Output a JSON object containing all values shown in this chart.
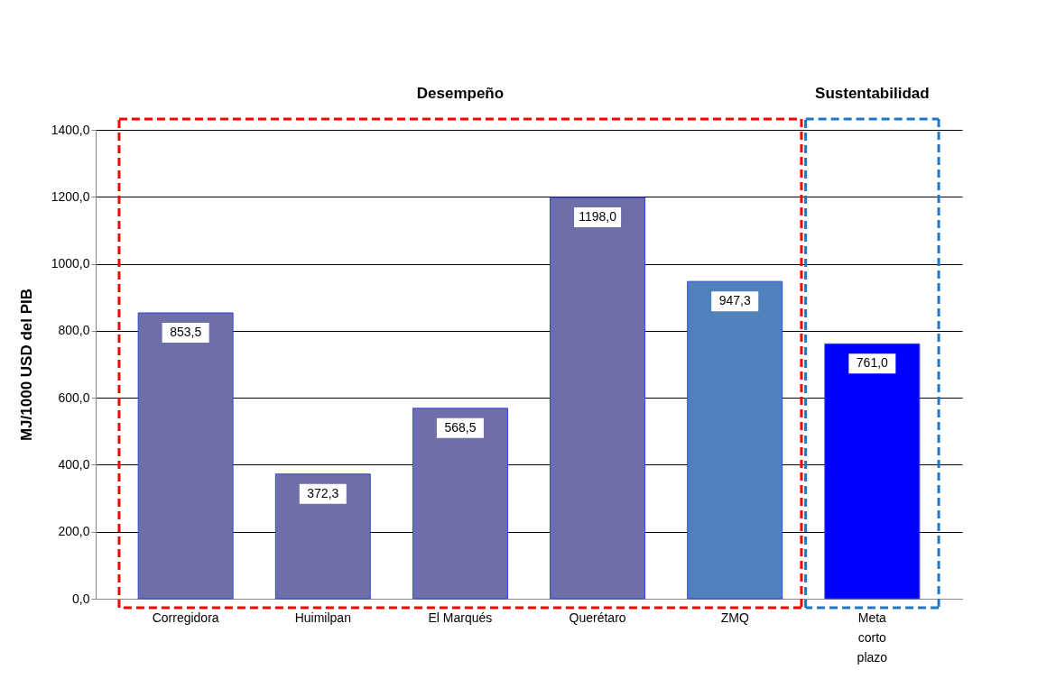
{
  "chart_data": {
    "type": "bar",
    "ylabel": "MJ/1000 USD del PIB",
    "categories": [
      "Corregidora",
      "Huimilpan",
      "El Marqués",
      "Querétaro",
      "ZMQ",
      "Meta corto plazo"
    ],
    "values": [
      853.5,
      372.3,
      568.5,
      1198.0,
      947.3,
      761.0
    ],
    "value_labels": [
      "853,5",
      "372,3",
      "568,5",
      "1198,0",
      "947,3",
      "761,0"
    ],
    "colors": [
      "#6e6ea8",
      "#6e6ea8",
      "#6e6ea8",
      "#6e6ea8",
      "#4f81bd",
      "#0000ff"
    ],
    "ylim": [
      0,
      1400
    ],
    "yticks": [
      {
        "value": 0,
        "label": "0,0"
      },
      {
        "value": 200,
        "label": "200,0"
      },
      {
        "value": 400,
        "label": "400,0"
      },
      {
        "value": 600,
        "label": "600,0"
      },
      {
        "value": 800,
        "label": "800,0"
      },
      {
        "value": 1000,
        "label": "1000,0"
      },
      {
        "value": 1200,
        "label": "1200,0"
      },
      {
        "value": 1400,
        "label": "1400,0"
      }
    ],
    "grid": "y",
    "annotations": [
      "Desempeño",
      "Sustentabilidad"
    ]
  }
}
